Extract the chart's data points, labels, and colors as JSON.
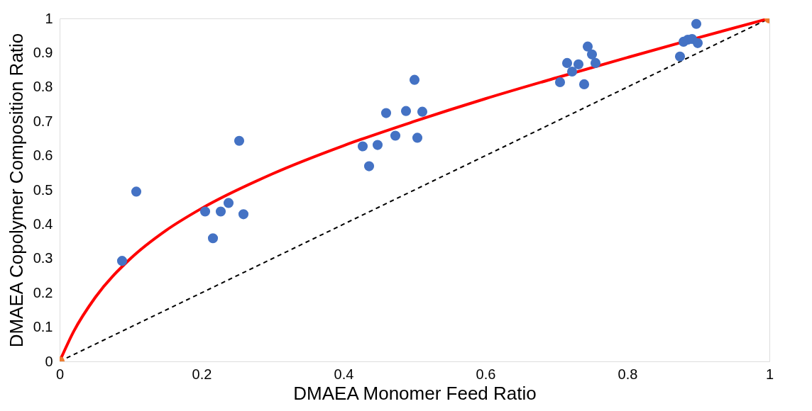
{
  "chart_data": {
    "type": "scatter",
    "xlabel": "DMAEA Monomer Feed Ratio",
    "ylabel": "DMAEA Copolymer Composition Ratio",
    "xlim": [
      0,
      1
    ],
    "ylim": [
      0,
      1
    ],
    "xticks": [
      0,
      0.2,
      0.4,
      0.6,
      0.8,
      1
    ],
    "yticks": [
      0,
      0.1,
      0.2,
      0.3,
      0.4,
      0.5,
      0.6,
      0.7,
      0.8,
      0.9,
      1
    ],
    "grid": false,
    "marker": "circle",
    "series": [
      {
        "type": "line",
        "color": "#000000",
        "line_style": "dashed",
        "marker": "none",
        "x": [
          0,
          1
        ],
        "values": [
          0,
          1
        ]
      },
      {
        "type": "line",
        "color": "#ff0000",
        "line_style": "solid",
        "marker": "none",
        "x": [
          0,
          0.02,
          0.05,
          0.1,
          0.15,
          0.2,
          0.3,
          0.4,
          0.5,
          0.6,
          0.7,
          0.8,
          0.9,
          1
        ],
        "values": [
          0,
          0.088,
          0.186,
          0.3,
          0.382,
          0.446,
          0.547,
          0.629,
          0.7,
          0.766,
          0.827,
          0.886,
          0.944,
          1
        ]
      },
      {
        "color": "#4472c4",
        "x": [
          0.088,
          0.108,
          0.205,
          0.216,
          0.227,
          0.238,
          0.253,
          0.259,
          0.427,
          0.436,
          0.448,
          0.46,
          0.473,
          0.488,
          0.5,
          0.504,
          0.511,
          0.705,
          0.715,
          0.722,
          0.731,
          0.739,
          0.744,
          0.75,
          0.755,
          0.874,
          0.879,
          0.885,
          0.891,
          0.897,
          0.899
        ],
        "values": [
          0.293,
          0.495,
          0.437,
          0.359,
          0.437,
          0.462,
          0.643,
          0.429,
          0.627,
          0.569,
          0.631,
          0.724,
          0.658,
          0.73,
          0.821,
          0.652,
          0.728,
          0.814,
          0.87,
          0.845,
          0.866,
          0.808,
          0.918,
          0.895,
          0.87,
          0.889,
          0.932,
          0.938,
          0.94,
          0.984,
          0.928
        ]
      },
      {
        "color": "#ed7d31",
        "x": [
          0,
          1
        ],
        "values": [
          0,
          1
        ]
      }
    ]
  }
}
